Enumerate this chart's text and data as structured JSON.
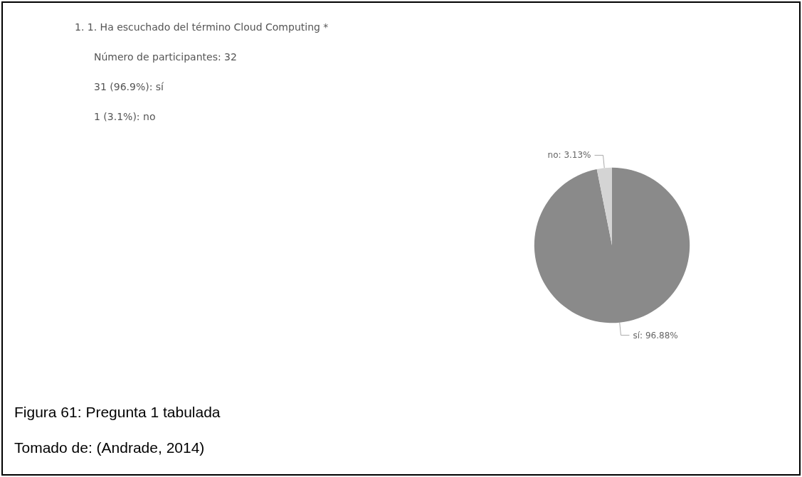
{
  "chart_data": {
    "type": "pie",
    "title": "1.  1. Ha escuchado del término Cloud Computing *",
    "annotations": [
      "Número de participantes: 32",
      "31 (96.9%): sí",
      "1 (3.1%): no",
      "Figura 61: Pregunta 1 tabulada",
      "Tomado de: (Andrade, 2014)"
    ],
    "categories": [
      "sí",
      "no"
    ],
    "values": [
      96.88,
      3.13
    ],
    "value_labels": [
      "96.88%",
      "3.13%"
    ],
    "colors": [
      "#8a8a8a",
      "#d4d4d4"
    ],
    "legend": false
  }
}
